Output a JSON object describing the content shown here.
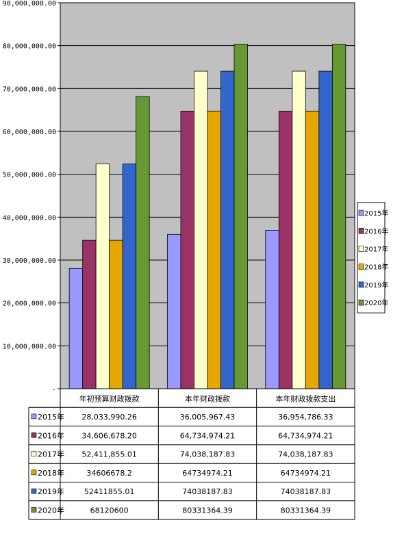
{
  "chart_data": {
    "type": "bar",
    "categories": [
      "年初预算财政拨款",
      "本年财政拨款",
      "本年财政拨款支出"
    ],
    "series": [
      {
        "name": "2015年",
        "color": "#9999ff",
        "values": [
          28033990.26,
          36005967.43,
          36954786.33
        ],
        "labels": [
          "28,033,990.26",
          "36,005,967.43",
          "36,954,786.33"
        ]
      },
      {
        "name": "2016年",
        "color": "#993366",
        "values": [
          34606678.2,
          64734974.21,
          64734974.21
        ],
        "labels": [
          "34,606,678.20",
          "64,734,974.21",
          "64,734,974.21"
        ]
      },
      {
        "name": "2017年",
        "color": "#ffffcc",
        "values": [
          52411855.01,
          74038187.83,
          74038187.83
        ],
        "labels": [
          "52,411,855.01",
          "74,038,187.83",
          "74,038,187.83"
        ]
      },
      {
        "name": "2018年",
        "color": "#e6a800",
        "values": [
          34606678.2,
          64734974.21,
          64734974.21
        ],
        "labels": [
          "34606678.2",
          "64734974.21",
          "64734974.21"
        ]
      },
      {
        "name": "2019年",
        "color": "#3366cc",
        "values": [
          52411855.01,
          74038187.83,
          74038187.83
        ],
        "labels": [
          "52411855.01",
          "74038187.83",
          "74038187.83"
        ]
      },
      {
        "name": "2020年",
        "color": "#669933",
        "values": [
          68120600,
          80331364.39,
          80331364.39
        ],
        "labels": [
          "68120600",
          "80331364.39",
          "80331364.39"
        ]
      }
    ],
    "ylim": [
      0,
      90000000
    ],
    "yticks": [
      0,
      10000000,
      20000000,
      30000000,
      40000000,
      50000000,
      60000000,
      70000000,
      80000000,
      90000000
    ],
    "ytick_labels": [
      "-",
      "10,000,000.00",
      "20,000,000.00",
      "30,000,000.00",
      "40,000,000.00",
      "50,000,000.00",
      "60,000,000.00",
      "70,000,000.00",
      "80,000,000.00",
      "90,000,000.00"
    ],
    "plot_background": "#c0c0c0",
    "grid": true,
    "legend": "right",
    "data_table": true
  }
}
